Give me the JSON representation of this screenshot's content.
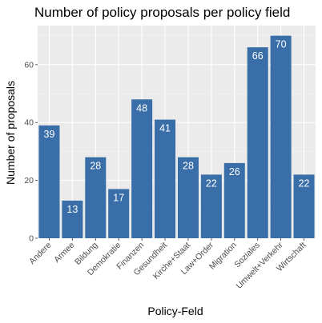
{
  "chart_data": {
    "type": "bar",
    "title": "Number of policy proposals per policy field",
    "xlabel": "Policy-Feld",
    "ylabel": "Number of proposals",
    "categories": [
      "Andere",
      "Armee",
      "Bildung",
      "Demokratie",
      "Finanzen",
      "Gesundheit",
      "Kirche+Staat",
      "Law+Order",
      "Migration",
      "Soziales",
      "Umwelt+Verkehr",
      "Wirtschaft"
    ],
    "values": [
      39,
      13,
      28,
      17,
      48,
      41,
      28,
      22,
      26,
      66,
      70,
      22
    ],
    "data_labels": [
      "39",
      "13",
      "28",
      "17",
      "48",
      "41",
      "28",
      "22",
      "26",
      "66",
      "70",
      "22"
    ],
    "yticks": [
      0,
      20,
      40,
      60
    ],
    "ytick_labels": [
      "0",
      "20",
      "40",
      "60"
    ],
    "ylim": [
      0,
      73.5
    ],
    "grid": true,
    "legend": "none",
    "colors": {
      "bar": "#3a6ea8",
      "panel": "#ebebeb",
      "grid_major": "#ffffff",
      "grid_minor": "#f5f5f5",
      "tick_label": "#4d4d4d"
    }
  }
}
